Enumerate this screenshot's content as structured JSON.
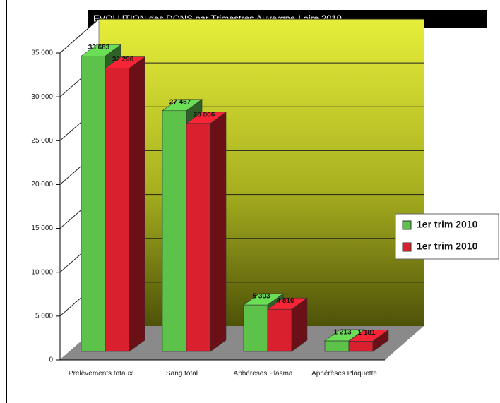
{
  "chart_data": {
    "type": "bar3d",
    "title": "EVOLUTION  des  DONS  par Trimestres Auvergne-Loire 2010",
    "categories": [
      "Prélèvements totaux",
      "Sang total",
      "Aphérèses Plasma",
      "Aphérèses Plaquette"
    ],
    "series": [
      {
        "name": "1er trim 2010",
        "color": "#5cc24a",
        "values": [
          33683,
          27457,
          5303,
          1213
        ],
        "value_labels": [
          "33 683",
          "27 457",
          "5 303",
          "1 213"
        ]
      },
      {
        "name": "1er trim 2010",
        "color": "#d8202f",
        "values": [
          32296,
          26006,
          4810,
          1181
        ],
        "value_labels": [
          "32 296",
          "26 006",
          "4 810",
          "1 181"
        ]
      }
    ],
    "ylim": [
      0,
      35000
    ],
    "yticks": [
      0,
      {
        "value": 5000,
        "label": "5 000"
      },
      {
        "value": 10000,
        "label": "10 000"
      },
      {
        "value": 15000,
        "label": "15 000"
      },
      {
        "value": 20000,
        "label": "20 000"
      },
      {
        "value": 25000,
        "label": "25 000"
      },
      {
        "value": 30000,
        "label": "30 000"
      },
      {
        "value": 35000,
        "label": "35 000"
      }
    ],
    "grid": true,
    "legend": "right"
  }
}
